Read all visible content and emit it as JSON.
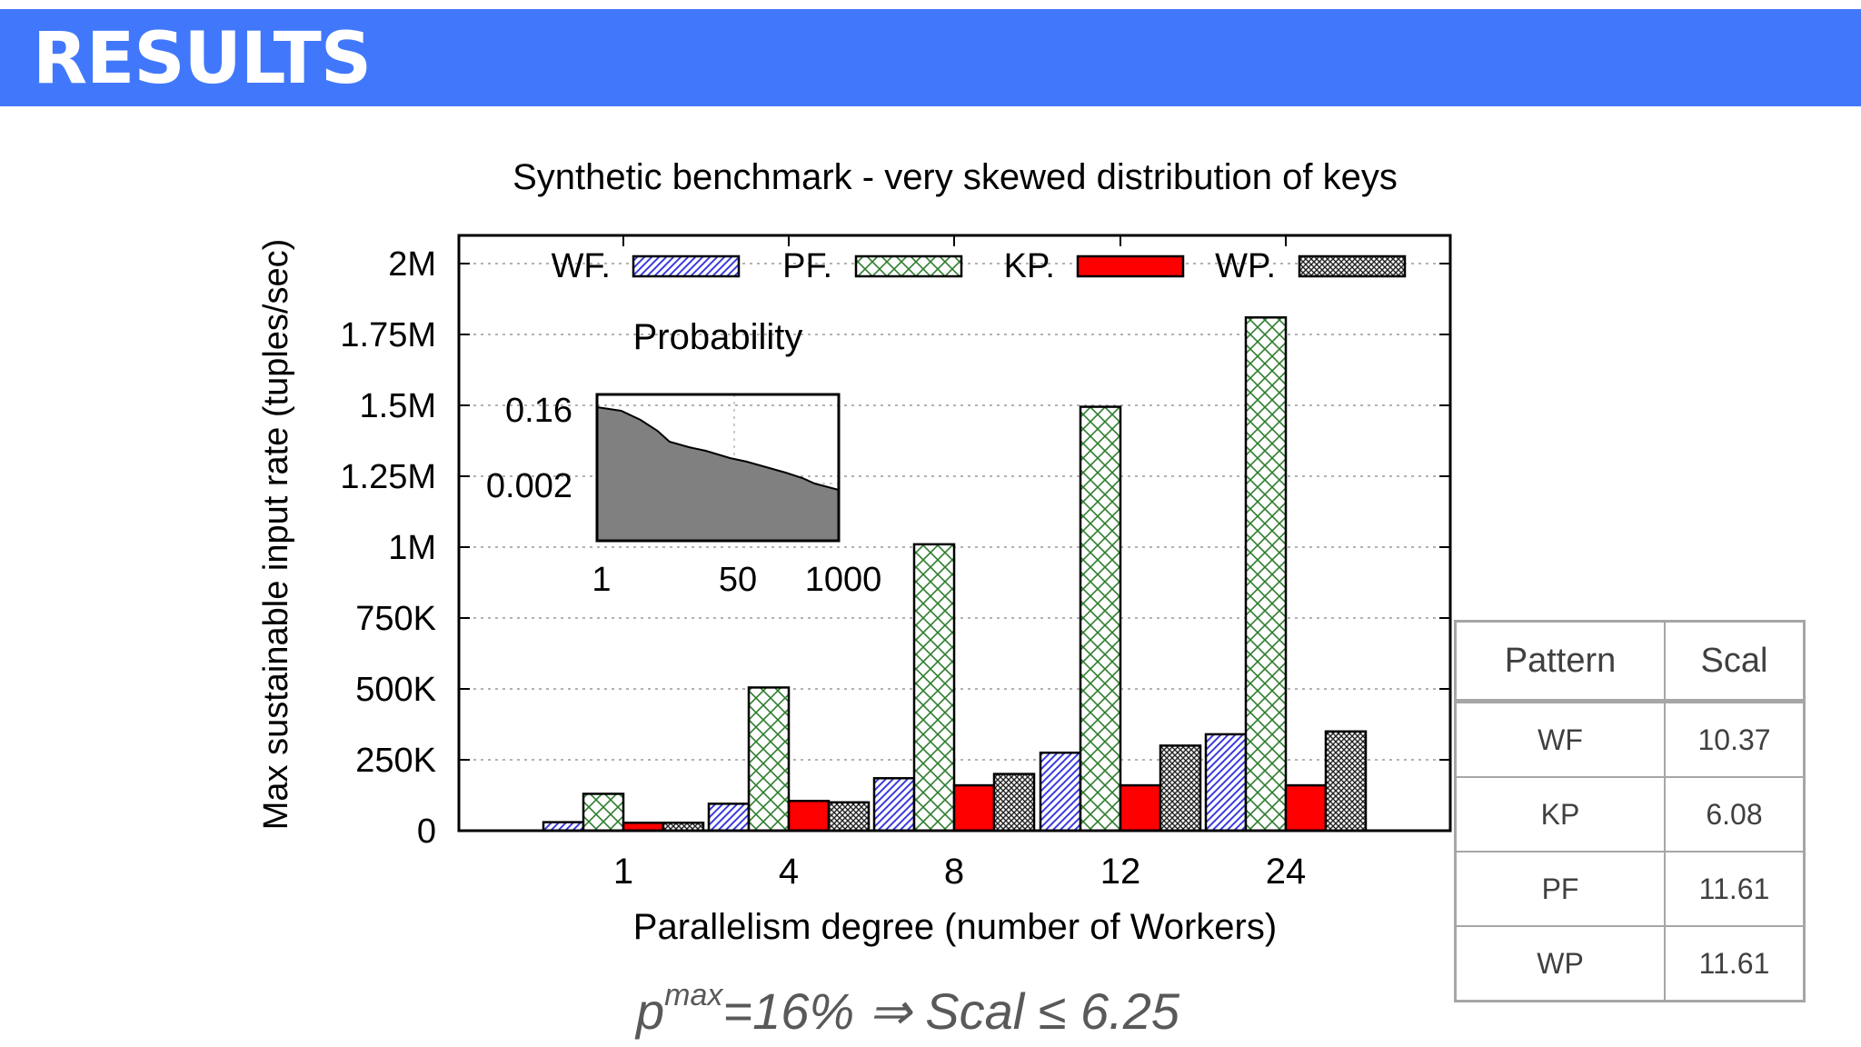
{
  "slide": {
    "title": "RESULTS"
  },
  "chart_data": {
    "type": "bar",
    "title": "Synthetic benchmark - very skewed distribution of keys",
    "xlabel": "Parallelism degree (number of Workers)",
    "ylabel": "Max sustainable input rate (tuples/sec)",
    "categories": [
      "1",
      "4",
      "8",
      "12",
      "24"
    ],
    "ylim": [
      0,
      2000000
    ],
    "yticks": [
      0,
      250000,
      500000,
      750000,
      1000000,
      1250000,
      1500000,
      1750000,
      2000000
    ],
    "ytick_labels": [
      "0",
      "250K",
      "500K",
      "750K",
      "1M",
      "1.25M",
      "1.5M",
      "1.75M",
      "2M"
    ],
    "grid": true,
    "legend_position": "top",
    "series": [
      {
        "name": "WF.",
        "pattern": "diagonal-hatch",
        "color": "#3a3ae0",
        "values": [
          30000,
          95000,
          185000,
          275000,
          340000
        ]
      },
      {
        "name": "PF.",
        "pattern": "cross-hatch",
        "color": "#2e7d2e",
        "values": [
          130000,
          505000,
          1010000,
          1495000,
          1810000
        ]
      },
      {
        "name": "KP.",
        "pattern": "solid",
        "color": "#ff0000",
        "values": [
          28000,
          105000,
          160000,
          160000,
          160000
        ]
      },
      {
        "name": "WP.",
        "pattern": "dense-cross-hatch",
        "color": "#222222",
        "values": [
          28000,
          100000,
          200000,
          300000,
          350000
        ]
      }
    ],
    "inset": {
      "type": "area",
      "title": "Probability",
      "ytick_labels": [
        "0.16",
        "0.002"
      ],
      "xtick_labels": [
        "1",
        "50",
        "1000"
      ],
      "color": "#808080"
    }
  },
  "table": {
    "headers": [
      "Pattern",
      "Scal"
    ],
    "rows": [
      [
        "WF",
        "10.37"
      ],
      [
        "KP",
        "6.08"
      ],
      [
        "PF",
        "11.61"
      ],
      [
        "WP",
        "11.61"
      ]
    ]
  },
  "formula": {
    "base": "p",
    "superscript": "max",
    "rest": "=16% ⇒ Scal ≤ 6.25"
  }
}
